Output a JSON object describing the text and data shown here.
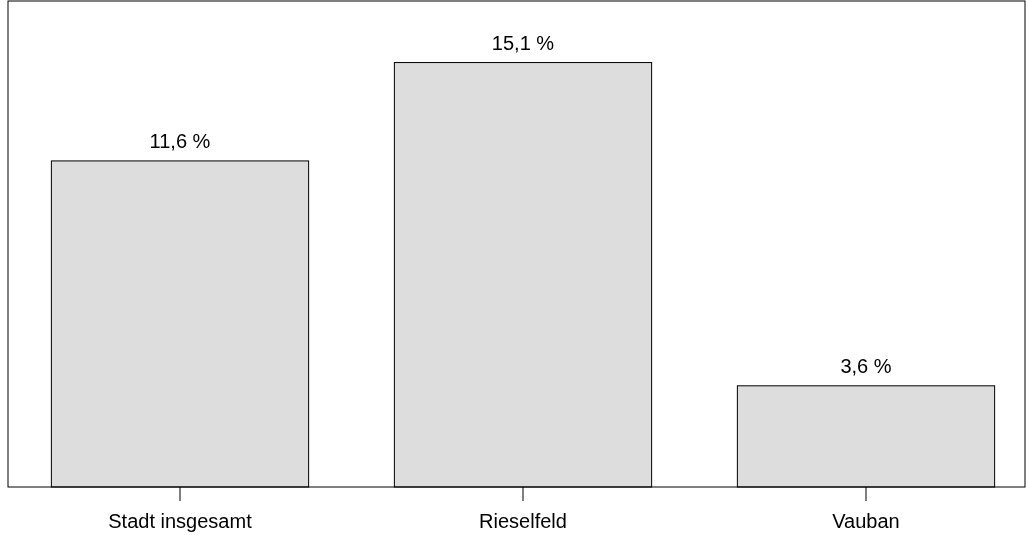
{
  "chart_data": {
    "type": "bar",
    "categories": [
      "Stadt insgesamt",
      "Rieselfeld",
      "Vauban"
    ],
    "values": [
      11.6,
      15.1,
      3.6
    ],
    "value_labels": [
      "11,6 %",
      "15,1 %",
      "3,6 %"
    ],
    "color": "#dddddd"
  }
}
